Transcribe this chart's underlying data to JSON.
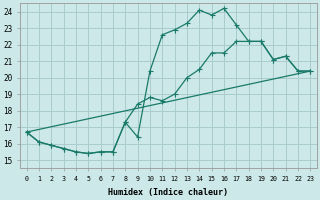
{
  "xlabel": "Humidex (Indice chaleur)",
  "bg_color": "#cce8e8",
  "grid_color": "#aacccc",
  "line_color": "#1a7a6a",
  "xlim": [
    -0.5,
    23.5
  ],
  "ylim": [
    14.5,
    24.5
  ],
  "xticks": [
    0,
    1,
    2,
    3,
    4,
    5,
    6,
    7,
    8,
    9,
    10,
    11,
    12,
    13,
    14,
    15,
    16,
    17,
    18,
    19,
    20,
    21,
    22,
    23
  ],
  "yticks": [
    15,
    16,
    17,
    18,
    19,
    20,
    21,
    22,
    23,
    24
  ],
  "line1_x": [
    0,
    1,
    2,
    3,
    4,
    5,
    6,
    7,
    8,
    9,
    10,
    11,
    12,
    13,
    14,
    15,
    16,
    17,
    18,
    19,
    20,
    21,
    22,
    23
  ],
  "line1_y": [
    16.7,
    16.1,
    15.9,
    15.7,
    15.5,
    15.4,
    15.5,
    15.5,
    17.3,
    16.4,
    20.4,
    22.6,
    22.9,
    23.3,
    24.1,
    23.8,
    24.2,
    23.2,
    22.2,
    22.2,
    21.1,
    21.3,
    20.4,
    20.4
  ],
  "line2_x": [
    0,
    1,
    2,
    3,
    4,
    5,
    6,
    7,
    8,
    9,
    10,
    11,
    12,
    13,
    14,
    15,
    16,
    17,
    18,
    19,
    20,
    21,
    22,
    23
  ],
  "line2_y": [
    16.7,
    16.1,
    15.9,
    15.7,
    15.5,
    15.4,
    15.5,
    15.5,
    17.3,
    18.4,
    18.8,
    18.6,
    19.0,
    20.0,
    20.5,
    21.5,
    21.5,
    22.2,
    22.2,
    22.2,
    21.1,
    21.3,
    20.4,
    20.4
  ],
  "line3_x": [
    0,
    23
  ],
  "line3_y": [
    16.7,
    20.4
  ]
}
